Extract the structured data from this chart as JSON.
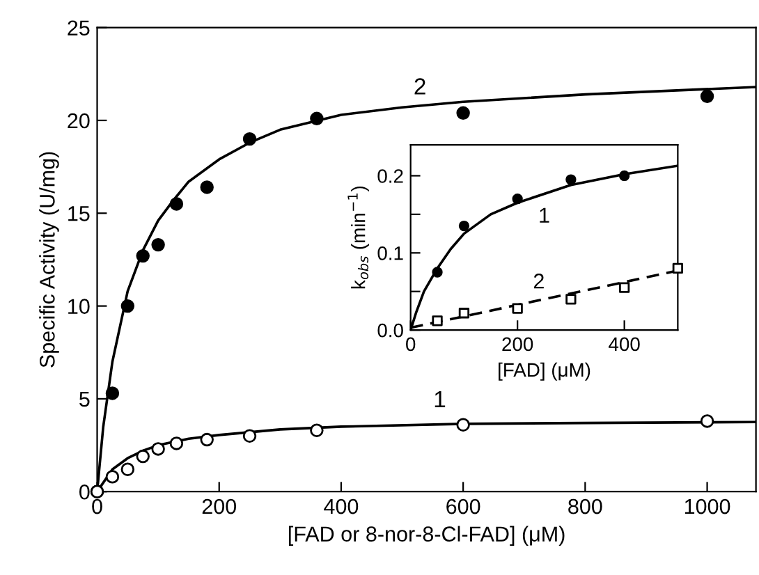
{
  "chart_data": [
    {
      "type": "scatter",
      "xlabel": "[FAD or 8-nor-8-Cl-FAD] (μM)",
      "ylabel": "Specific Activity (U/mg)",
      "xlim": [
        0,
        1080
      ],
      "ylim": [
        0,
        25
      ],
      "xticks": [
        0,
        200,
        400,
        600,
        800,
        1000
      ],
      "yticks": [
        0,
        5,
        10,
        15,
        20,
        25
      ],
      "grid": false,
      "legend": false,
      "series": [
        {
          "marker": "circle",
          "color": "#000000",
          "x": [
            0,
            25,
            50,
            75,
            100,
            130,
            180,
            250,
            360,
            600,
            1000
          ],
          "values": [
            0,
            5.3,
            10,
            12.7,
            13.3,
            15.5,
            16.4,
            19,
            20.1,
            20.4,
            21.3
          ]
        },
        {
          "marker": "circle",
          "color": "#ffffff",
          "x": [
            0,
            25,
            50,
            75,
            100,
            130,
            180,
            250,
            360,
            600,
            1000
          ],
          "values": [
            0,
            0.8,
            1.2,
            1.9,
            2.3,
            2.6,
            2.8,
            3.0,
            3.3,
            3.6,
            3.8
          ]
        },
        {
          "type": "line",
          "name": "2",
          "line_style": "solid",
          "color": "#000000",
          "x": [
            0,
            10,
            25,
            50,
            75,
            100,
            125,
            150,
            200,
            250,
            300,
            400,
            500,
            600,
            800,
            1080
          ],
          "values": [
            0,
            3.5,
            7.0,
            10.8,
            13.0,
            14.6,
            15.7,
            16.7,
            17.9,
            18.8,
            19.5,
            20.3,
            20.7,
            21.0,
            21.4,
            21.8
          ]
        },
        {
          "type": "line",
          "name": "1",
          "line_style": "solid",
          "color": "#000000",
          "x": [
            0,
            25,
            50,
            75,
            100,
            150,
            200,
            300,
            400,
            600,
            800,
            1080
          ],
          "values": [
            0,
            1.2,
            1.8,
            2.2,
            2.5,
            2.85,
            3.05,
            3.35,
            3.5,
            3.65,
            3.7,
            3.75
          ]
        }
      ]
    },
    {
      "type": "scatter",
      "xlabel": "[FAD] (μM)",
      "ylabel": "k$_{obs}$ (min$^{−1}$)",
      "xlim": [
        0,
        500
      ],
      "ylim": [
        0,
        0.24
      ],
      "xticks": [
        0,
        200,
        400
      ],
      "yticks": [
        {
          "value": 0,
          "label": "0.0"
        },
        {
          "value": 0.05,
          "label": null
        },
        0.1,
        {
          "value": 0.15,
          "label": null
        },
        0.2
      ],
      "grid": false,
      "legend": false,
      "series": [
        {
          "marker": "circle",
          "color": "#000000",
          "x": [
            50,
            100,
            200,
            300,
            400
          ],
          "values": [
            0.075,
            0.135,
            0.17,
            0.195,
            0.2
          ]
        },
        {
          "marker": "square",
          "color": "#ffffff",
          "x": [
            50,
            100,
            200,
            300,
            400,
            500
          ],
          "values": [
            0.012,
            0.022,
            0.028,
            0.04,
            0.055,
            0.08
          ]
        },
        {
          "type": "line",
          "name": "1",
          "line_style": "solid",
          "color": "#000000",
          "x": [
            0,
            10,
            25,
            50,
            75,
            100,
            150,
            200,
            300,
            400,
            500
          ],
          "values": [
            0,
            0.022,
            0.05,
            0.08,
            0.105,
            0.125,
            0.15,
            0.165,
            0.188,
            0.202,
            0.213
          ]
        },
        {
          "type": "line",
          "name": "2",
          "line_style": "dashed",
          "color": "#000000",
          "x": [
            0,
            500
          ],
          "values": [
            0.003,
            0.077
          ]
        }
      ]
    }
  ]
}
